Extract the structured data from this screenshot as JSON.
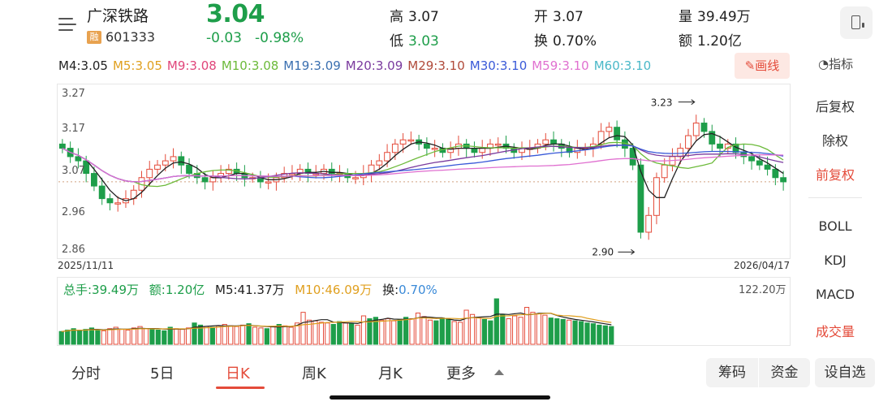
{
  "header": {
    "stock_name": "广深铁路",
    "badge": "融",
    "stock_code": "601333",
    "price": "3.04",
    "change": "-0.03",
    "change_pct": "-0.98%",
    "high_label": "高",
    "high": "3.07",
    "low_label": "低",
    "low": "3.03",
    "open_label": "开",
    "open": "3.07",
    "turnover_label": "换",
    "turnover": "0.70%",
    "volume_label": "量",
    "volume": "39.49万",
    "amount_label": "额",
    "amount": "1.20亿"
  },
  "ma_legend": [
    {
      "text": "M4:3.05",
      "color": "#222222"
    },
    {
      "text": "M5:3.05",
      "color": "#e0a020"
    },
    {
      "text": "M9:3.08",
      "color": "#e0457a"
    },
    {
      "text": "M10:3.08",
      "color": "#6cba3a"
    },
    {
      "text": "M19:3.09",
      "color": "#3a6fb0"
    },
    {
      "text": "M20:3.09",
      "color": "#7a3a9e"
    },
    {
      "text": "M29:3.10",
      "color": "#b04a3a"
    },
    {
      "text": "M30:3.10",
      "color": "#3a5ad8"
    },
    {
      "text": "M59:3.10",
      "color": "#e070d0"
    },
    {
      "text": "M60:3.10",
      "color": "#4ab8c8"
    }
  ],
  "draw_button": "画线",
  "indicator_button": "指标",
  "chart_data": {
    "type": "candlestick",
    "y_ticks": [
      "3.27",
      "3.17",
      "3.07",
      "2.96",
      "2.86"
    ],
    "ylim": [
      2.86,
      3.27
    ],
    "x_start": "2025/11/11",
    "x_end": "2026/04/17",
    "annotations": [
      {
        "text": "3.23",
        "value": 3.23
      },
      {
        "text": "2.90",
        "value": 2.9
      }
    ],
    "closes": [
      3.12,
      3.1,
      3.09,
      3.06,
      3.03,
      3.0,
      2.99,
      2.99,
      3.0,
      3.02,
      3.05,
      3.07,
      3.08,
      3.09,
      3.1,
      3.08,
      3.06,
      3.05,
      3.04,
      3.05,
      3.06,
      3.07,
      3.06,
      3.05,
      3.05,
      3.04,
      3.04,
      3.05,
      3.06,
      3.06,
      3.07,
      3.06,
      3.06,
      3.07,
      3.06,
      3.06,
      3.05,
      3.05,
      3.06,
      3.08,
      3.09,
      3.11,
      3.13,
      3.14,
      3.14,
      3.13,
      3.12,
      3.12,
      3.11,
      3.12,
      3.13,
      3.12,
      3.11,
      3.12,
      3.13,
      3.13,
      3.12,
      3.11,
      3.12,
      3.12,
      3.13,
      3.14,
      3.13,
      3.12,
      3.11,
      3.12,
      3.12,
      3.13,
      3.16,
      3.17,
      3.14,
      3.12,
      3.08,
      2.92,
      2.96,
      3.05,
      3.08,
      3.1,
      3.12,
      3.15,
      3.18,
      3.16,
      3.13,
      3.12,
      3.13,
      3.11,
      3.1,
      3.09,
      3.08,
      3.07,
      3.05,
      3.04
    ],
    "volume_max": "122.20万",
    "volumes": [
      18,
      20,
      22,
      19,
      21,
      23,
      20,
      19,
      22,
      24,
      21,
      20,
      23,
      25,
      22,
      21,
      20,
      19,
      24,
      22,
      21,
      23,
      30,
      27,
      25,
      24,
      26,
      28,
      26,
      25,
      27,
      29,
      24,
      23,
      22,
      25,
      28,
      26,
      24,
      30,
      45,
      34,
      33,
      31,
      30,
      28,
      32,
      30,
      29,
      27,
      40,
      36,
      38,
      34,
      36,
      33,
      35,
      38,
      36,
      44,
      39,
      34,
      33,
      37,
      35,
      32,
      31,
      48,
      42,
      38,
      35,
      33,
      64,
      42,
      36,
      40,
      38,
      52,
      45,
      43,
      41,
      37,
      36,
      35,
      34,
      33,
      32,
      30,
      29,
      27,
      26,
      25
    ]
  },
  "volume_legend": {
    "total": "总手:39.49万",
    "amount": "额:1.20亿",
    "m5": "M5:41.37万",
    "m10": "M10:46.09万",
    "turnover_label": "换:",
    "turnover_value": "0.70%"
  },
  "right_panel": {
    "items": [
      "后复权",
      "除权",
      "前复权"
    ],
    "indicators": [
      "BOLL",
      "KDJ",
      "MACD",
      "成交量"
    ]
  },
  "tabs": [
    "分时",
    "5日",
    "日K",
    "周K",
    "月K",
    "更多"
  ],
  "bottom_buttons": {
    "chip": "筹码",
    "fund": "资金",
    "watchlist": "设自选"
  },
  "colors": {
    "up": "#e44b3a",
    "down": "#1e9e4a",
    "accent": "#e44b3a"
  }
}
